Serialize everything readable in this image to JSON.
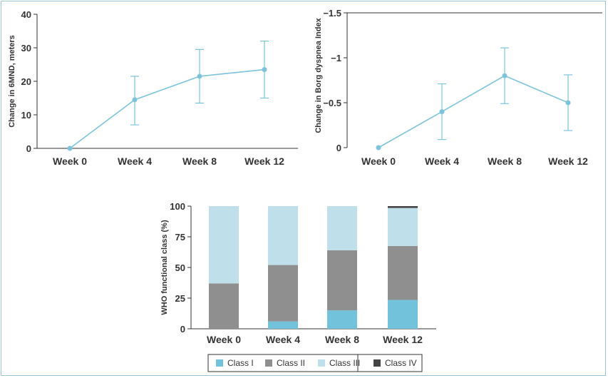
{
  "chart_data": [
    {
      "type": "line",
      "ylabel": "Change in 6MND, meters",
      "categories": [
        "Week 0",
        "Week 4",
        "Week 8",
        "Week 12"
      ],
      "values": [
        0,
        14.5,
        21.5,
        23.5
      ],
      "err_low": [
        0,
        7,
        13.5,
        15
      ],
      "err_high": [
        0,
        21.5,
        29.5,
        32
      ],
      "yticks": [
        "0",
        "10",
        "20",
        "30",
        "40"
      ],
      "ylim": [
        0,
        40
      ],
      "color": "#7cc4dd"
    },
    {
      "type": "line",
      "ylabel": "Change in Borg dyspnea Index",
      "categories": [
        "Week 0",
        "Week 4",
        "Week 8",
        "Week 12"
      ],
      "values": [
        0,
        -0.4,
        -0.8,
        -0.5
      ],
      "err_low": [
        0,
        -0.71,
        -1.11,
        -0.81
      ],
      "err_high": [
        0,
        -0.09,
        -0.49,
        -0.19
      ],
      "yticks": [
        "0",
        "-0.5",
        "-1",
        "-1.5"
      ],
      "ylim": [
        -1.5,
        0
      ],
      "color": "#7cc4dd"
    },
    {
      "type": "bar",
      "stacked": true,
      "ylabel": "WHO functional class (%)",
      "categories": [
        "Week 0",
        "Week 4",
        "Week 8",
        "Week 12"
      ],
      "yticks": [
        "0",
        "25",
        "50",
        "75",
        "100"
      ],
      "ylim": [
        0,
        100
      ],
      "series": [
        {
          "name": "Class I",
          "color": "#73c2dc",
          "values": [
            0,
            6,
            15,
            23.5
          ]
        },
        {
          "name": "Class II",
          "color": "#8f8f8f",
          "values": [
            37,
            46,
            49,
            44
          ]
        },
        {
          "name": "Class III",
          "color": "#bfe0eb",
          "values": [
            63,
            48,
            36,
            31
          ]
        },
        {
          "name": "Class IV",
          "color": "#444444",
          "values": [
            0,
            0,
            0,
            1.5
          ]
        }
      ]
    }
  ]
}
